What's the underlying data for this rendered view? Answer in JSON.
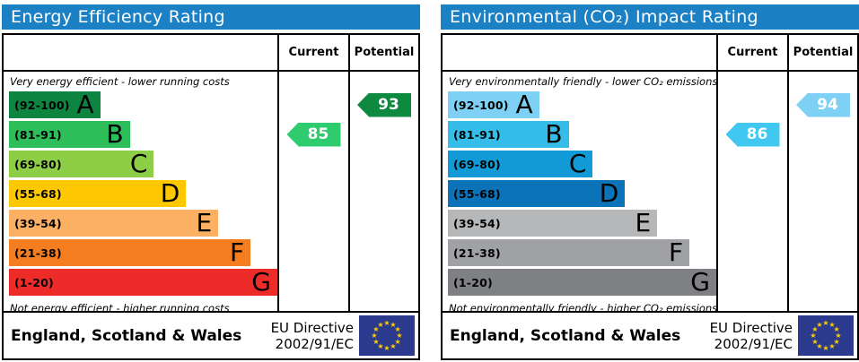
{
  "colors": {
    "header_bg": "#1b80c4",
    "border": "#000000",
    "flag_bg": "#2b3a8c",
    "flag_star": "#ffcc00"
  },
  "chart_data": [
    {
      "type": "bar",
      "title": "Energy Efficiency Rating",
      "categories": [
        "A (92-100)",
        "B (81-91)",
        "C (69-80)",
        "D (55-68)",
        "E (39-54)",
        "F (21-38)",
        "G (1-20)"
      ],
      "values": [
        34,
        45,
        54,
        66,
        78,
        90,
        100
      ],
      "values_note": "relative band bar widths (% of column, visual)",
      "current": 85,
      "current_band": "B",
      "potential": 93,
      "potential_band": "A",
      "annotations": [
        "Very energy efficient - lower running costs",
        "Not energy efficient - higher running costs"
      ],
      "legend_position": "none",
      "grid": false
    },
    {
      "type": "bar",
      "title": "Environmental (CO₂) Impact Rating",
      "categories": [
        "A (92-100)",
        "B (81-91)",
        "C (69-80)",
        "D (55-68)",
        "E (39-54)",
        "F (21-38)",
        "G (1-20)"
      ],
      "values": [
        34,
        45,
        54,
        66,
        78,
        90,
        100
      ],
      "values_note": "relative band bar widths (% of column, visual)",
      "current": 86,
      "current_band": "B",
      "potential": 94,
      "potential_band": "A",
      "annotations": [
        "Very environmentally friendly - lower CO₂ emissions",
        "Not environmentally friendly - higher CO₂ emissions"
      ],
      "legend_position": "none",
      "grid": false
    }
  ],
  "panels": [
    {
      "title": "Energy Efficiency Rating",
      "col_current": "Current",
      "col_potential": "Potential",
      "top_note": "Very energy efficient - lower running costs",
      "bottom_note": "Not energy efficient - higher running costs",
      "bands": [
        {
          "range": "(92-100)",
          "letter": "A",
          "color": "#0d8440",
          "width_pct": 34
        },
        {
          "range": "(81-91)",
          "letter": "B",
          "color": "#2dbd59",
          "width_pct": 45
        },
        {
          "range": "(69-80)",
          "letter": "C",
          "color": "#8dce46",
          "width_pct": 54
        },
        {
          "range": "(55-68)",
          "letter": "D",
          "color": "#fdc800",
          "width_pct": 66
        },
        {
          "range": "(39-54)",
          "letter": "E",
          "color": "#fbb064",
          "width_pct": 78
        },
        {
          "range": "(21-38)",
          "letter": "F",
          "color": "#f47d20",
          "width_pct": 90
        },
        {
          "range": "(1-20)",
          "letter": "G",
          "color": "#ed2c2a",
          "width_pct": 100
        }
      ],
      "arrows": {
        "current": {
          "value": "85",
          "band": "B",
          "color": "#2ecc6e"
        },
        "potential": {
          "value": "93",
          "band": "A",
          "color": "#0e8a40"
        }
      },
      "footer": {
        "region": "England, Scotland & Wales",
        "directive_line1": "EU Directive",
        "directive_line2": "2002/91/EC"
      }
    },
    {
      "title": "Environmental (CO₂) Impact Rating",
      "col_current": "Current",
      "col_potential": "Potential",
      "top_note": "Very environmentally friendly - lower CO₂ emissions",
      "bottom_note": "Not environmentally friendly - higher CO₂ emissions",
      "bands": [
        {
          "range": "(92-100)",
          "letter": "A",
          "color": "#7ed0f4",
          "width_pct": 34
        },
        {
          "range": "(81-91)",
          "letter": "B",
          "color": "#36bce8",
          "width_pct": 45
        },
        {
          "range": "(69-80)",
          "letter": "C",
          "color": "#119ad5",
          "width_pct": 54
        },
        {
          "range": "(55-68)",
          "letter": "D",
          "color": "#0d73b9",
          "width_pct": 66
        },
        {
          "range": "(39-54)",
          "letter": "E",
          "color": "#b5b7b9",
          "width_pct": 78
        },
        {
          "range": "(21-38)",
          "letter": "F",
          "color": "#9fa1a4",
          "width_pct": 90
        },
        {
          "range": "(1-20)",
          "letter": "G",
          "color": "#7e8083",
          "width_pct": 100
        }
      ],
      "arrows": {
        "current": {
          "value": "86",
          "band": "B",
          "color": "#41c8f1"
        },
        "potential": {
          "value": "94",
          "band": "A",
          "color": "#7ed0f4"
        }
      },
      "footer": {
        "region": "England, Scotland & Wales",
        "directive_line1": "EU Directive",
        "directive_line2": "2002/91/EC"
      }
    }
  ]
}
